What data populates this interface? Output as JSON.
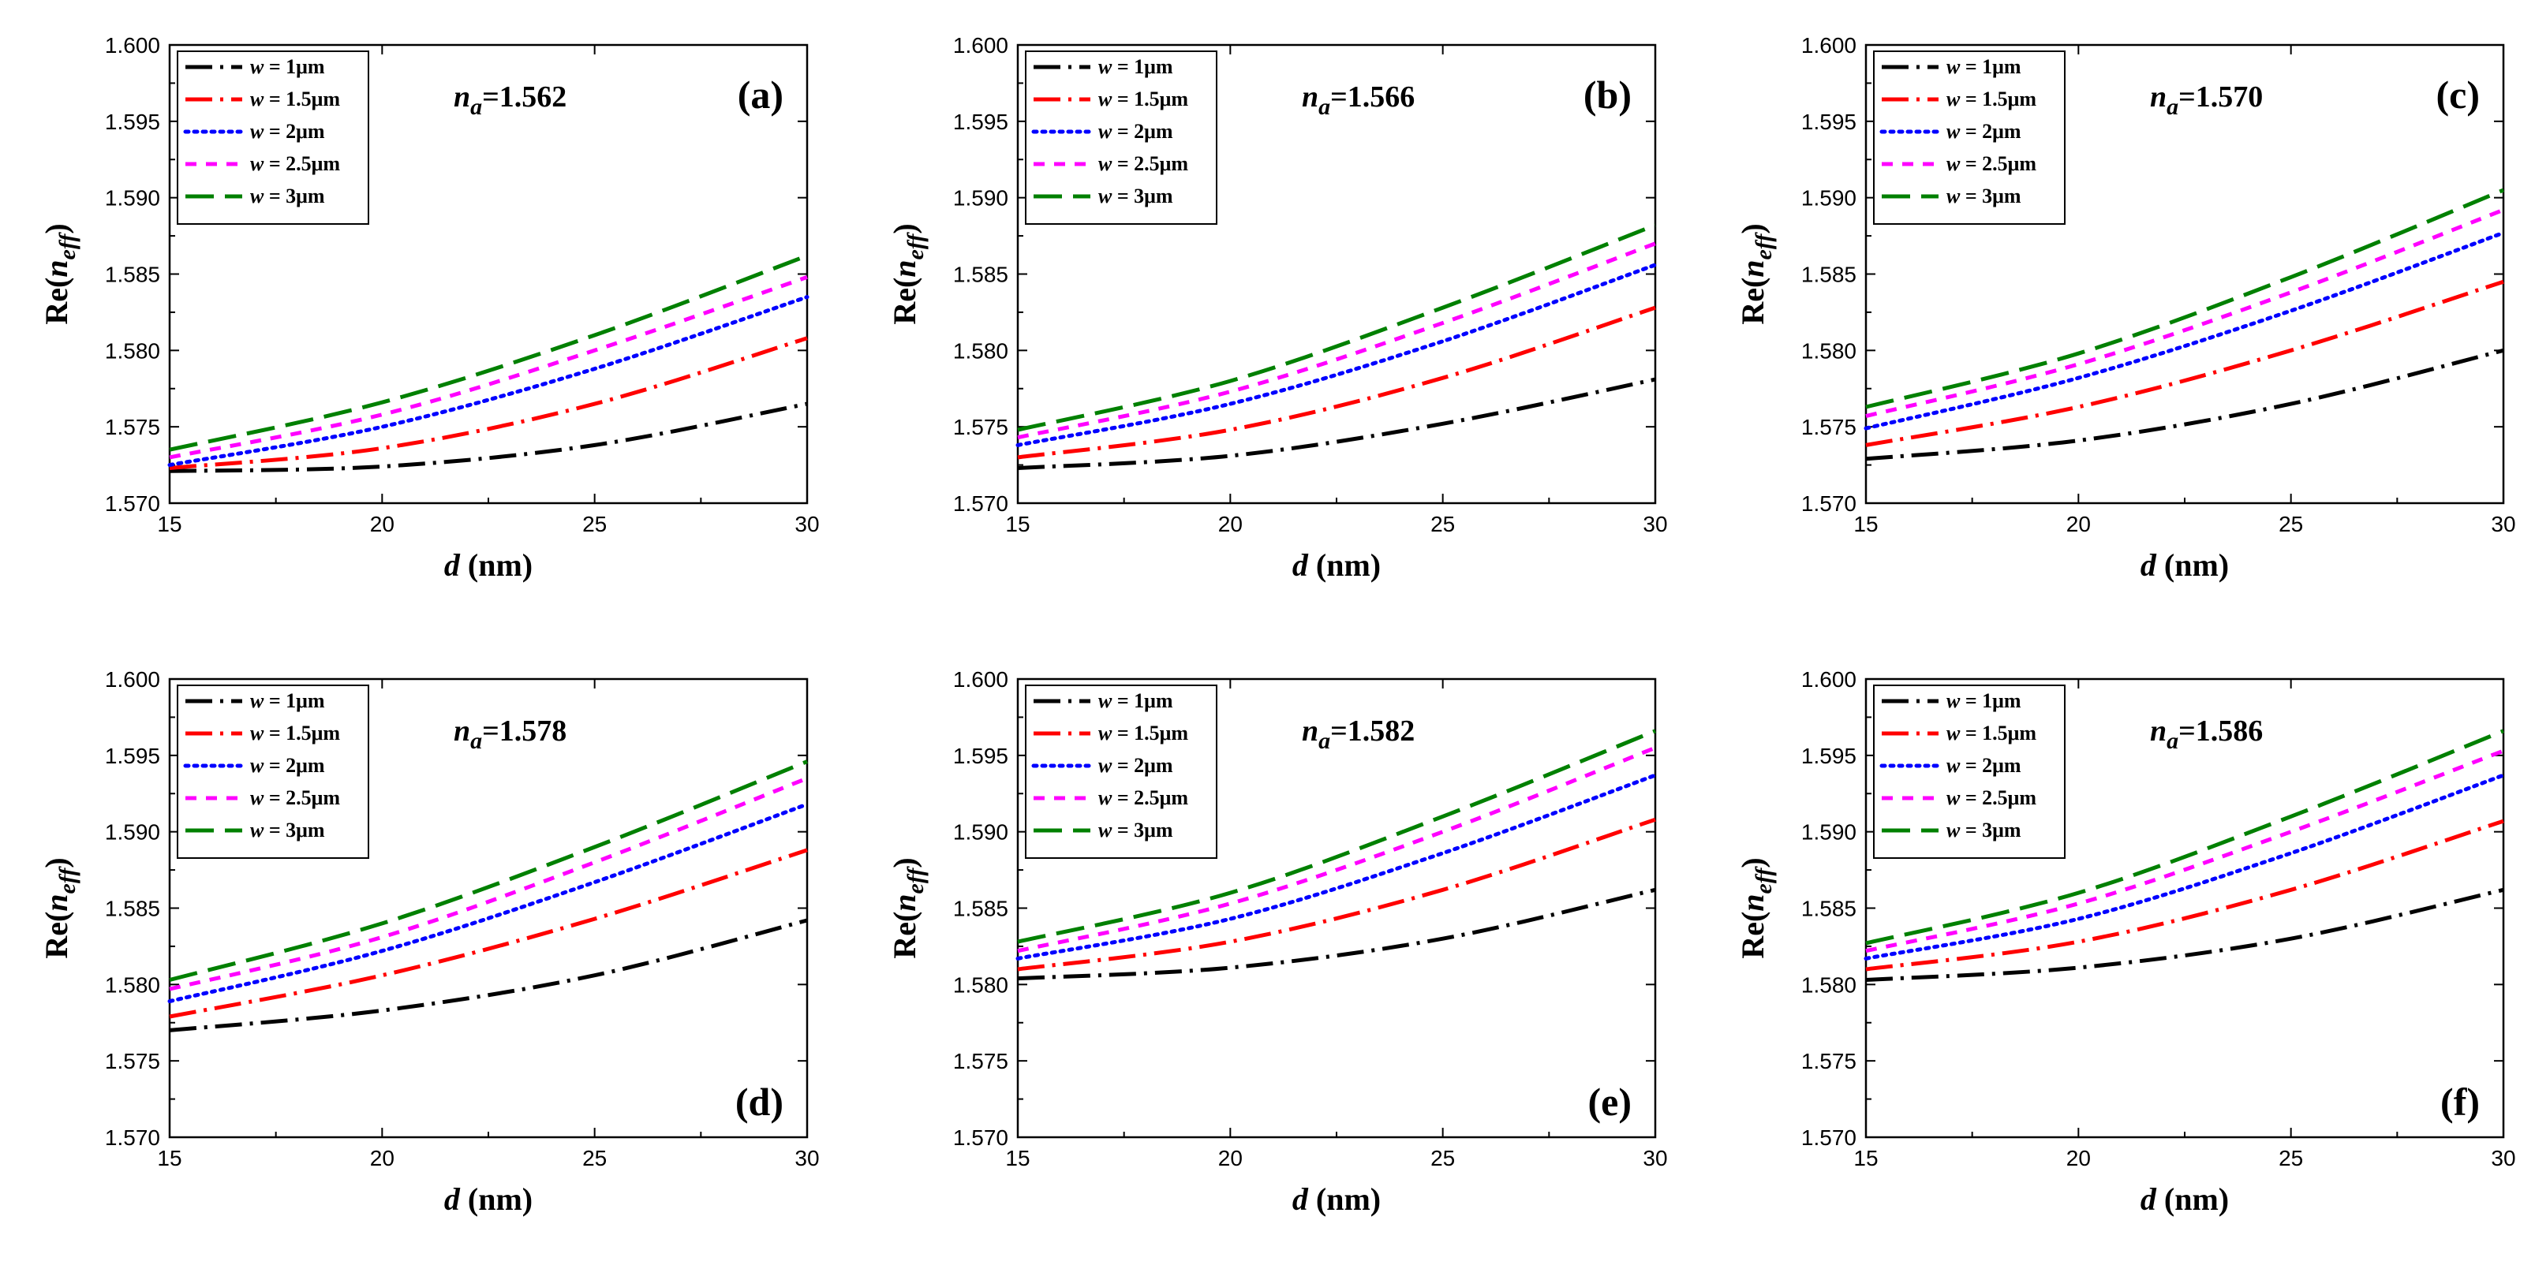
{
  "chart_data": [
    {
      "type": "line",
      "panel_label": "(a)",
      "annotation_prefix": "n",
      "annotation_sub": "a",
      "annotation_value": "=1.562",
      "xlabel_var": "d",
      "xlabel_unit": " (nm)",
      "ylabel_prefix": "Re(",
      "ylabel_var": "n",
      "ylabel_sub": "eff",
      "ylabel_suffix": ")",
      "xlim": [
        15,
        30
      ],
      "ylim": [
        1.57,
        1.6
      ],
      "x_ticks": [
        "15",
        "20",
        "25",
        "30"
      ],
      "y_ticks": [
        "1.570",
        "1.575",
        "1.580",
        "1.585",
        "1.590",
        "1.595",
        "1.600"
      ],
      "legend_position": "top-left",
      "series": [
        {
          "name_prefix": "w",
          "name_suffix": " = 1μm",
          "color": "#000000",
          "dash": "dashdot",
          "x": [
            15,
            20,
            25,
            30
          ],
          "y": [
            1.5721,
            1.5724,
            1.5738,
            1.5765
          ]
        },
        {
          "name_prefix": "w",
          "name_suffix": " = 1.5μm",
          "color": "#ff0000",
          "dash": "dashdot",
          "x": [
            15,
            20,
            25,
            30
          ],
          "y": [
            1.5723,
            1.5736,
            1.5765,
            1.5808
          ]
        },
        {
          "name_prefix": "w",
          "name_suffix": " = 2μm",
          "color": "#0000ff",
          "dash": "dotted",
          "x": [
            15,
            20,
            25,
            30
          ],
          "y": [
            1.5725,
            1.575,
            1.5788,
            1.5835
          ]
        },
        {
          "name_prefix": "w",
          "name_suffix": " = 2.5μm",
          "color": "#ff00ff",
          "dash": "short",
          "x": [
            15,
            20,
            25,
            30
          ],
          "y": [
            1.573,
            1.5758,
            1.58,
            1.5848
          ]
        },
        {
          "name_prefix": "w",
          "name_suffix": " = 3μm",
          "color": "#008000",
          "dash": "long",
          "x": [
            15,
            20,
            25,
            30
          ],
          "y": [
            1.5735,
            1.5766,
            1.581,
            1.5862
          ]
        }
      ]
    },
    {
      "type": "line",
      "panel_label": "(b)",
      "annotation_prefix": "n",
      "annotation_sub": "a",
      "annotation_value": "=1.566",
      "xlabel_var": "d",
      "xlabel_unit": " (nm)",
      "ylabel_prefix": "Re(",
      "ylabel_var": "n",
      "ylabel_sub": "eff",
      "ylabel_suffix": ")",
      "xlim": [
        15,
        30
      ],
      "ylim": [
        1.57,
        1.6
      ],
      "x_ticks": [
        "15",
        "20",
        "25",
        "30"
      ],
      "y_ticks": [
        "1.570",
        "1.575",
        "1.580",
        "1.585",
        "1.590",
        "1.595",
        "1.600"
      ],
      "legend_position": "top-left",
      "series": [
        {
          "name_prefix": "w",
          "name_suffix": " = 1μm",
          "color": "#000000",
          "dash": "dashdot",
          "x": [
            15,
            20,
            25,
            30
          ],
          "y": [
            1.5723,
            1.5731,
            1.5752,
            1.5781
          ]
        },
        {
          "name_prefix": "w",
          "name_suffix": " = 1.5μm",
          "color": "#ff0000",
          "dash": "dashdot",
          "x": [
            15,
            20,
            25,
            30
          ],
          "y": [
            1.573,
            1.5748,
            1.5782,
            1.5828
          ]
        },
        {
          "name_prefix": "w",
          "name_suffix": " = 2μm",
          "color": "#0000ff",
          "dash": "dotted",
          "x": [
            15,
            20,
            25,
            30
          ],
          "y": [
            1.5738,
            1.5765,
            1.5806,
            1.5856
          ]
        },
        {
          "name_prefix": "w",
          "name_suffix": " = 2.5μm",
          "color": "#ff00ff",
          "dash": "short",
          "x": [
            15,
            20,
            25,
            30
          ],
          "y": [
            1.5743,
            1.5773,
            1.5818,
            1.587
          ]
        },
        {
          "name_prefix": "w",
          "name_suffix": " = 3μm",
          "color": "#008000",
          "dash": "long",
          "x": [
            15,
            20,
            25,
            30
          ],
          "y": [
            1.5748,
            1.578,
            1.5828,
            1.5882
          ]
        }
      ]
    },
    {
      "type": "line",
      "panel_label": "(c)",
      "annotation_prefix": "n",
      "annotation_sub": "a",
      "annotation_value": "=1.570",
      "xlabel_var": "d",
      "xlabel_unit": " (nm)",
      "ylabel_prefix": "Re(",
      "ylabel_var": "n",
      "ylabel_sub": "eff",
      "ylabel_suffix": ")",
      "xlim": [
        15,
        30
      ],
      "ylim": [
        1.57,
        1.6
      ],
      "x_ticks": [
        "15",
        "20",
        "25",
        "30"
      ],
      "y_ticks": [
        "1.570",
        "1.575",
        "1.580",
        "1.585",
        "1.590",
        "1.595",
        "1.600"
      ],
      "legend_position": "top-left",
      "series": [
        {
          "name_prefix": "w",
          "name_suffix": " = 1μm",
          "color": "#000000",
          "dash": "dashdot",
          "x": [
            15,
            20,
            25,
            30
          ],
          "y": [
            1.5729,
            1.5741,
            1.5765,
            1.58
          ]
        },
        {
          "name_prefix": "w",
          "name_suffix": " = 1.5μm",
          "color": "#ff0000",
          "dash": "dashdot",
          "x": [
            15,
            20,
            25,
            30
          ],
          "y": [
            1.5738,
            1.5763,
            1.58,
            1.5845
          ]
        },
        {
          "name_prefix": "w",
          "name_suffix": " = 2μm",
          "color": "#0000ff",
          "dash": "dotted",
          "x": [
            15,
            20,
            25,
            30
          ],
          "y": [
            1.5749,
            1.5782,
            1.5826,
            1.5877
          ]
        },
        {
          "name_prefix": "w",
          "name_suffix": " = 2.5μm",
          "color": "#ff00ff",
          "dash": "short",
          "x": [
            15,
            20,
            25,
            30
          ],
          "y": [
            1.5757,
            1.5791,
            1.5838,
            1.5892
          ]
        },
        {
          "name_prefix": "w",
          "name_suffix": " = 3μm",
          "color": "#008000",
          "dash": "long",
          "x": [
            15,
            20,
            25,
            30
          ],
          "y": [
            1.5763,
            1.5798,
            1.5848,
            1.5905
          ]
        }
      ]
    },
    {
      "type": "line",
      "panel_label": "(d)",
      "annotation_prefix": "n",
      "annotation_sub": "a",
      "annotation_value": "=1.578",
      "xlabel_var": "d",
      "xlabel_unit": " (nm)",
      "ylabel_prefix": "Re(",
      "ylabel_var": "n",
      "ylabel_sub": "eff",
      "ylabel_suffix": ")",
      "xlim": [
        15,
        30
      ],
      "ylim": [
        1.57,
        1.6
      ],
      "x_ticks": [
        "15",
        "20",
        "25",
        "30"
      ],
      "y_ticks": [
        "1.570",
        "1.575",
        "1.580",
        "1.585",
        "1.590",
        "1.595",
        "1.600"
      ],
      "legend_position": "top-left",
      "series": [
        {
          "name_prefix": "w",
          "name_suffix": " = 1μm",
          "color": "#000000",
          "dash": "dashdot",
          "x": [
            15,
            20,
            25,
            30
          ],
          "y": [
            1.577,
            1.5783,
            1.5806,
            1.5842
          ]
        },
        {
          "name_prefix": "w",
          "name_suffix": " = 1.5μm",
          "color": "#ff0000",
          "dash": "dashdot",
          "x": [
            15,
            20,
            25,
            30
          ],
          "y": [
            1.5779,
            1.5806,
            1.5843,
            1.5888
          ]
        },
        {
          "name_prefix": "w",
          "name_suffix": " = 2μm",
          "color": "#0000ff",
          "dash": "dotted",
          "x": [
            15,
            20,
            25,
            30
          ],
          "y": [
            1.5789,
            1.5822,
            1.5867,
            1.5918
          ]
        },
        {
          "name_prefix": "w",
          "name_suffix": " = 2.5μm",
          "color": "#ff00ff",
          "dash": "short",
          "x": [
            15,
            20,
            25,
            30
          ],
          "y": [
            1.5797,
            1.5831,
            1.588,
            1.5935
          ]
        },
        {
          "name_prefix": "w",
          "name_suffix": " = 3μm",
          "color": "#008000",
          "dash": "long",
          "x": [
            15,
            20,
            25,
            30
          ],
          "y": [
            1.5803,
            1.584,
            1.589,
            1.5946
          ]
        }
      ]
    },
    {
      "type": "line",
      "panel_label": "(e)",
      "annotation_prefix": "n",
      "annotation_sub": "a",
      "annotation_value": "=1.582",
      "xlabel_var": "d",
      "xlabel_unit": " (nm)",
      "ylabel_prefix": "Re(",
      "ylabel_var": "n",
      "ylabel_sub": "eff",
      "ylabel_suffix": ")",
      "xlim": [
        15,
        30
      ],
      "ylim": [
        1.57,
        1.6
      ],
      "x_ticks": [
        "15",
        "20",
        "25",
        "30"
      ],
      "y_ticks": [
        "1.570",
        "1.575",
        "1.580",
        "1.585",
        "1.590",
        "1.595",
        "1.600"
      ],
      "legend_position": "top-left",
      "series": [
        {
          "name_prefix": "w",
          "name_suffix": " = 1μm",
          "color": "#000000",
          "dash": "dashdot",
          "x": [
            15,
            20,
            25,
            30
          ],
          "y": [
            1.5804,
            1.5811,
            1.583,
            1.5862
          ]
        },
        {
          "name_prefix": "w",
          "name_suffix": " = 1.5μm",
          "color": "#ff0000",
          "dash": "dashdot",
          "x": [
            15,
            20,
            25,
            30
          ],
          "y": [
            1.581,
            1.5828,
            1.5862,
            1.5908
          ]
        },
        {
          "name_prefix": "w",
          "name_suffix": " = 2μm",
          "color": "#0000ff",
          "dash": "dotted",
          "x": [
            15,
            20,
            25,
            30
          ],
          "y": [
            1.5817,
            1.5843,
            1.5886,
            1.5937
          ]
        },
        {
          "name_prefix": "w",
          "name_suffix": " = 2.5μm",
          "color": "#ff00ff",
          "dash": "short",
          "x": [
            15,
            20,
            25,
            30
          ],
          "y": [
            1.5822,
            1.5853,
            1.59,
            1.5955
          ]
        },
        {
          "name_prefix": "w",
          "name_suffix": " = 3μm",
          "color": "#008000",
          "dash": "long",
          "x": [
            15,
            20,
            25,
            30
          ],
          "y": [
            1.5828,
            1.586,
            1.591,
            1.5966
          ]
        }
      ]
    },
    {
      "type": "line",
      "panel_label": "(f)",
      "annotation_prefix": "n",
      "annotation_sub": "a",
      "annotation_value": "=1.586",
      "xlabel_var": "d",
      "xlabel_unit": " (nm)",
      "ylabel_prefix": "Re(",
      "ylabel_var": "n",
      "ylabel_sub": "eff",
      "ylabel_suffix": ")",
      "xlim": [
        15,
        30
      ],
      "ylim": [
        1.57,
        1.6
      ],
      "x_ticks": [
        "15",
        "20",
        "25",
        "30"
      ],
      "y_ticks": [
        "1.570",
        "1.575",
        "1.580",
        "1.585",
        "1.590",
        "1.595",
        "1.600"
      ],
      "legend_position": "top-left",
      "series": [
        {
          "name_prefix": "w",
          "name_suffix": " = 1μm",
          "color": "#000000",
          "dash": "dashdot",
          "x": [
            15,
            20,
            25,
            30
          ],
          "y": [
            1.5803,
            1.5811,
            1.583,
            1.5862
          ]
        },
        {
          "name_prefix": "w",
          "name_suffix": " = 1.5μm",
          "color": "#ff0000",
          "dash": "dashdot",
          "x": [
            15,
            20,
            25,
            30
          ],
          "y": [
            1.581,
            1.5828,
            1.5862,
            1.5907
          ]
        },
        {
          "name_prefix": "w",
          "name_suffix": " = 2μm",
          "color": "#0000ff",
          "dash": "dotted",
          "x": [
            15,
            20,
            25,
            30
          ],
          "y": [
            1.5817,
            1.5843,
            1.5886,
            1.5937
          ]
        },
        {
          "name_prefix": "w",
          "name_suffix": " = 2.5μm",
          "color": "#ff00ff",
          "dash": "short",
          "x": [
            15,
            20,
            25,
            30
          ],
          "y": [
            1.5822,
            1.5853,
            1.59,
            1.5953
          ]
        },
        {
          "name_prefix": "w",
          "name_suffix": " = 3μm",
          "color": "#008000",
          "dash": "long",
          "x": [
            15,
            20,
            25,
            30
          ],
          "y": [
            1.5827,
            1.586,
            1.591,
            1.5966
          ]
        }
      ]
    }
  ]
}
